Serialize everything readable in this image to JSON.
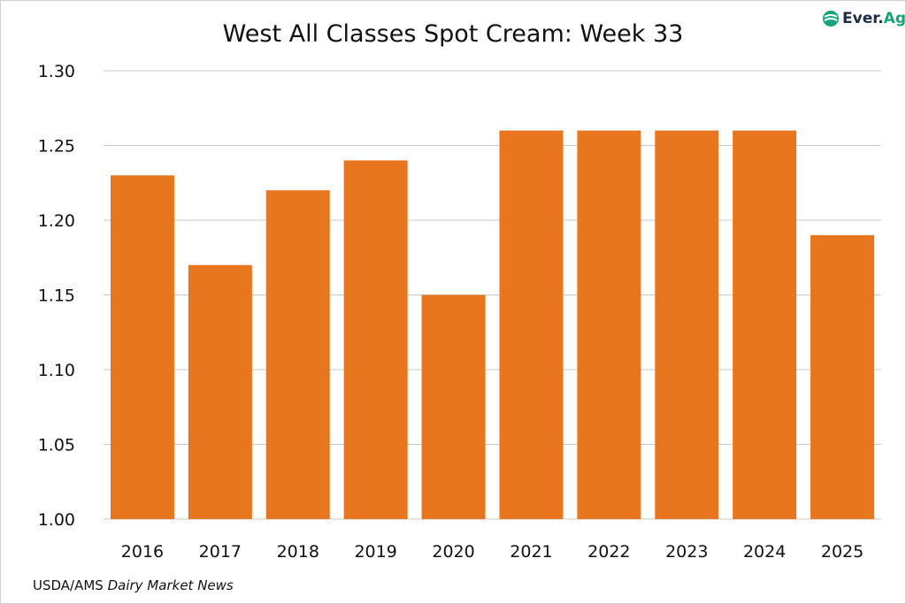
{
  "logo": {
    "text_main": "Ever.",
    "text_accent": "Ag"
  },
  "source": {
    "prefix": "USDA/AMS ",
    "italic": "Dairy Market News"
  },
  "colors": {
    "bar": "#E8761E",
    "grid": "#c8c8c8",
    "logo_accent": "#1aa37a",
    "logo_dark": "#1f2a44"
  },
  "chart_data": {
    "type": "bar",
    "title": "West All Classes Spot Cream: Week 33",
    "categories": [
      "2016",
      "2017",
      "2018",
      "2019",
      "2020",
      "2021",
      "2022",
      "2023",
      "2024",
      "2025"
    ],
    "values": [
      1.23,
      1.17,
      1.22,
      1.24,
      1.15,
      1.26,
      1.26,
      1.26,
      1.26,
      1.19
    ],
    "xlabel": "",
    "ylabel": "",
    "ylim": [
      1.0,
      1.3
    ],
    "yticks": [
      "1.00",
      "1.05",
      "1.10",
      "1.15",
      "1.20",
      "1.25",
      "1.30"
    ],
    "grid": true,
    "legend": "none"
  }
}
